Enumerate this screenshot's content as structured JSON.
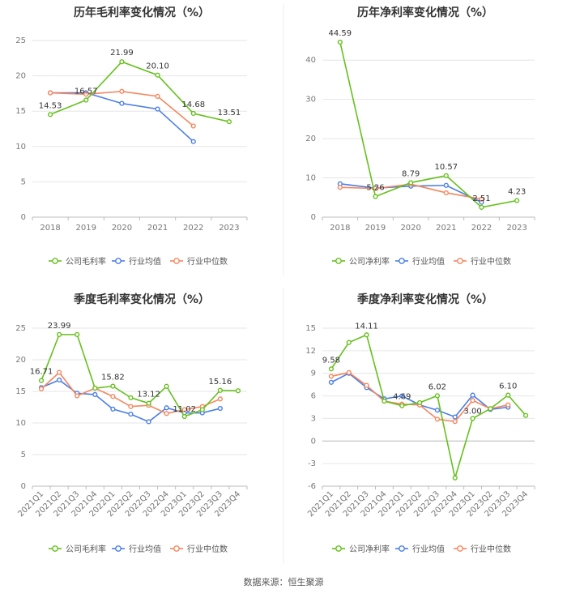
{
  "colors": {
    "company": "#66c01e",
    "industry_avg": "#4a7ee6",
    "industry_median": "#f3875e"
  },
  "source": "数据来源：恒生聚源",
  "chart_data": [
    {
      "type": "line",
      "title": "历年毛利率变化情况（%）",
      "categories": [
        "2018",
        "2019",
        "2020",
        "2021",
        "2022",
        "2023"
      ],
      "ylim": [
        0,
        25
      ],
      "yticks": [
        0,
        5,
        10,
        15,
        20,
        25
      ],
      "series": [
        {
          "name": "公司毛利率",
          "values": [
            14.53,
            16.57,
            21.99,
            20.1,
            14.68,
            13.51
          ]
        },
        {
          "name": "行业均值",
          "values": [
            17.6,
            17.6,
            16.1,
            15.3,
            10.7,
            null
          ]
        },
        {
          "name": "行业中位数",
          "values": [
            17.6,
            17.4,
            17.8,
            17.1,
            12.9,
            null
          ]
        }
      ],
      "labels": [
        "14.53",
        "16.57",
        "21.99",
        "20.10",
        "14.68",
        "13.51"
      ]
    },
    {
      "type": "line",
      "title": "历年净利率变化情况（%）",
      "categories": [
        "2018",
        "2019",
        "2020",
        "2021",
        "2022",
        "2023"
      ],
      "ylim": [
        0,
        50
      ],
      "yticks": [
        0,
        10,
        20,
        30,
        40
      ],
      "series": [
        {
          "name": "公司净利率",
          "values": [
            44.59,
            5.26,
            8.79,
            10.57,
            2.51,
            4.23
          ]
        },
        {
          "name": "行业均值",
          "values": [
            8.5,
            7.4,
            7.9,
            8.1,
            3.8,
            null
          ]
        },
        {
          "name": "行业中位数",
          "values": [
            7.6,
            7.3,
            8.4,
            6.2,
            4.6,
            null
          ]
        }
      ],
      "labels": [
        "44.59",
        "5.26",
        "8.79",
        "10.57",
        "2.51",
        "4.23"
      ]
    },
    {
      "type": "line",
      "title": "季度毛利率变化情况（%）",
      "categories": [
        "2021Q1",
        "2021Q2",
        "2021Q3",
        "2021Q4",
        "2022Q1",
        "2022Q2",
        "2022Q3",
        "2022Q4",
        "2023Q1",
        "2023Q2",
        "2023Q3",
        "2023Q4"
      ],
      "ylim": [
        0,
        25
      ],
      "yticks": [
        0,
        5,
        10,
        15,
        20,
        25
      ],
      "series": [
        {
          "name": "公司毛利率",
          "values": [
            16.71,
            23.99,
            23.99,
            15.5,
            15.82,
            14.0,
            13.12,
            15.8,
            11.02,
            12.1,
            15.16,
            15.1
          ]
        },
        {
          "name": "行业均值",
          "values": [
            15.6,
            16.8,
            14.7,
            14.5,
            12.2,
            11.4,
            10.2,
            12.4,
            11.6,
            11.6,
            12.3,
            null
          ]
        },
        {
          "name": "行业中位数",
          "values": [
            15.4,
            18.0,
            14.3,
            15.5,
            14.2,
            12.6,
            12.8,
            11.5,
            12.1,
            12.6,
            13.8,
            null
          ]
        }
      ],
      "labels": [
        "16.71",
        "23.99",
        "15.82",
        "13.12",
        "11.02",
        "15.16"
      ]
    },
    {
      "type": "line",
      "title": "季度净利率变化情况（%）",
      "categories": [
        "2021Q1",
        "2021Q2",
        "2021Q3",
        "2021Q4",
        "2022Q1",
        "2022Q2",
        "2022Q3",
        "2022Q4",
        "2023Q1",
        "2023Q2",
        "2023Q3",
        "2023Q4"
      ],
      "ylim": [
        -6,
        15
      ],
      "yticks": [
        -6,
        -3,
        0,
        3,
        6,
        9,
        12,
        15
      ],
      "series": [
        {
          "name": "公司净利率",
          "values": [
            9.58,
            13.1,
            14.11,
            5.3,
            4.69,
            5.1,
            6.02,
            -4.9,
            3.0,
            4.3,
            6.1,
            3.4
          ]
        },
        {
          "name": "行业均值",
          "values": [
            7.8,
            9.0,
            7.1,
            5.6,
            6.0,
            4.8,
            4.1,
            3.2,
            6.1,
            4.2,
            4.5,
            null
          ]
        },
        {
          "name": "行业中位数",
          "values": [
            8.6,
            9.1,
            7.4,
            5.3,
            4.9,
            4.8,
            2.9,
            2.6,
            5.4,
            4.3,
            4.8,
            null
          ]
        }
      ],
      "labels": [
        "9.58",
        "14.11",
        "4.69",
        "6.02",
        "3.00",
        "6.10"
      ]
    }
  ]
}
